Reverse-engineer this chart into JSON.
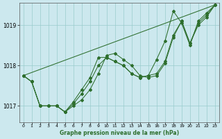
{
  "background_color": "#cce8ee",
  "grid_color": "#99cccc",
  "line_color": "#2d6e2d",
  "xlim": [
    -0.5,
    23.5
  ],
  "ylim": [
    1016.6,
    1019.55
  ],
  "yticks": [
    1017,
    1018,
    1019
  ],
  "xticks": [
    0,
    1,
    2,
    3,
    4,
    5,
    6,
    7,
    8,
    9,
    10,
    11,
    12,
    13,
    14,
    15,
    16,
    17,
    18,
    19,
    20,
    21,
    22,
    23
  ],
  "xlabel": "Graphe pression niveau de la mer (hPa)",
  "line1_x": [
    0,
    1,
    2,
    3,
    4,
    5,
    6,
    7,
    8,
    9,
    10,
    11,
    12,
    13,
    14,
    15,
    16,
    17,
    18,
    19,
    20,
    21,
    22,
    23
  ],
  "line1_y": [
    1017.75,
    1017.6,
    1017.0,
    1017.0,
    1017.0,
    1016.85,
    1017.0,
    1017.15,
    1017.4,
    1017.8,
    1018.25,
    1018.3,
    1018.15,
    1018.0,
    1017.75,
    1017.7,
    1017.75,
    1018.05,
    1018.7,
    1019.1,
    1018.55,
    1019.0,
    1019.2,
    1019.5
  ],
  "line2_x": [
    0,
    1,
    2,
    3,
    4,
    5,
    6,
    7,
    8,
    9,
    10,
    11,
    12,
    13,
    14,
    15,
    16,
    17,
    18,
    19,
    20,
    21,
    22,
    23
  ],
  "line2_y": [
    1017.75,
    1017.6,
    1017.0,
    1017.0,
    1017.0,
    1016.85,
    1017.1,
    1017.4,
    1017.7,
    1018.2,
    1018.2,
    1018.1,
    1018.0,
    1017.8,
    1017.7,
    1017.75,
    1018.15,
    1018.6,
    1019.35,
    1019.05,
    1018.5,
    1019.1,
    1019.3,
    1019.5
  ],
  "line3_x": [
    0,
    1,
    2,
    3,
    4,
    5,
    6,
    7,
    8,
    9,
    10,
    11,
    12,
    13,
    14,
    15,
    16,
    17,
    18,
    19,
    20,
    21,
    22,
    23
  ],
  "line3_y": [
    1017.75,
    1017.6,
    1017.0,
    1017.0,
    1017.0,
    1016.85,
    1017.05,
    1017.3,
    1017.6,
    1018.0,
    1018.2,
    1018.1,
    1018.0,
    1017.8,
    1017.7,
    1017.75,
    1017.8,
    1018.1,
    1018.75,
    1019.1,
    1018.55,
    1019.05,
    1019.25,
    1019.5
  ],
  "line4_x": [
    0,
    23
  ],
  "line4_y": [
    1017.75,
    1019.5
  ]
}
